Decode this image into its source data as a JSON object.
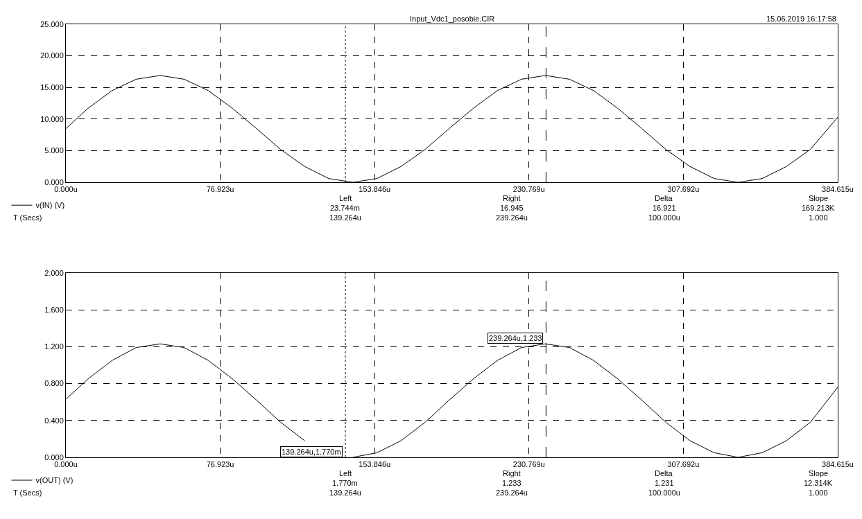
{
  "chart_data": [
    {
      "type": "line",
      "title": "Input_Vdc1_posobie.CIR",
      "subtitle": "15.06.2019 16:17:58",
      "x": [
        0,
        11,
        23,
        35,
        47,
        59,
        71,
        83,
        95,
        107,
        119,
        131,
        143,
        155,
        167,
        179,
        191,
        203,
        215,
        227,
        239,
        251,
        263,
        275,
        287,
        299,
        311,
        323,
        335,
        347,
        359,
        371,
        384.615
      ],
      "series": [
        {
          "name": "v(IN) (V)",
          "color": "#000000",
          "values": [
            8.5,
            11.7,
            14.5,
            16.3,
            16.9,
            16.3,
            14.5,
            11.7,
            8.5,
            5.2,
            2.5,
            0.6,
            0.0,
            0.6,
            2.5,
            5.2,
            8.5,
            11.7,
            14.5,
            16.3,
            16.9,
            16.3,
            14.5,
            11.7,
            8.5,
            5.2,
            2.5,
            0.6,
            0.0,
            0.6,
            2.5,
            5.2,
            10.3
          ]
        }
      ],
      "xlim": [
        0,
        384.615
      ],
      "xticks": [
        {
          "value": 0,
          "label": "0.000u"
        },
        {
          "value": 76.923,
          "label": "76.923u"
        },
        {
          "value": 153.846,
          "label": "153.846u"
        },
        {
          "value": 230.769,
          "label": "230.769u"
        },
        {
          "value": 307.692,
          "label": "307.692u"
        },
        {
          "value": 384.615,
          "label": "384.615u"
        }
      ],
      "ylim": [
        0,
        25
      ],
      "yticks": [
        {
          "value": 0,
          "label": "0.000"
        },
        {
          "value": 5,
          "label": "5.000"
        },
        {
          "value": 10,
          "label": "10.000"
        },
        {
          "value": 15,
          "label": "15.000"
        },
        {
          "value": 20,
          "label": "20.000"
        },
        {
          "value": 25,
          "label": "25.000"
        }
      ],
      "grid": true,
      "legend": "bottom left",
      "marker": "none",
      "line_style": "solid",
      "ref_lines": [
        {
          "axis": "x",
          "value": 139.264,
          "color": "#000000",
          "line_style": "dotted"
        },
        {
          "axis": "x",
          "value": 239.264,
          "color": "#000000",
          "line_style": "dashed"
        }
      ],
      "annotations": [
        "Left",
        "Right",
        "Delta",
        "Slope",
        "23.744m",
        "16.945",
        "16.921",
        "169.213K",
        "T (Secs)",
        "139.264u",
        "239.264u",
        "100.000u",
        "1.000"
      ]
    },
    {
      "type": "line",
      "x": [
        0,
        11,
        23,
        35,
        47,
        59,
        71,
        83,
        95,
        107,
        119,
        131,
        143,
        155,
        167,
        179,
        191,
        203,
        215,
        227,
        239,
        251,
        263,
        275,
        287,
        299,
        311,
        323,
        335,
        347,
        359,
        371,
        384.615
      ],
      "series": [
        {
          "name": "v(OUT) (V)",
          "color": "#000000",
          "values": [
            0.63,
            0.85,
            1.05,
            1.19,
            1.23,
            1.19,
            1.05,
            0.85,
            0.62,
            0.38,
            0.18,
            null,
            0.0,
            0.05,
            0.18,
            0.38,
            0.62,
            0.85,
            1.05,
            1.19,
            1.23,
            1.19,
            1.05,
            0.85,
            0.62,
            0.38,
            0.18,
            0.05,
            0.0,
            0.05,
            0.18,
            0.38,
            0.76
          ]
        }
      ],
      "xlim": [
        0,
        384.615
      ],
      "xticks": [
        {
          "value": 0,
          "label": "0.000u"
        },
        {
          "value": 76.923,
          "label": "76.923u"
        },
        {
          "value": 153.846,
          "label": "153.846u"
        },
        {
          "value": 230.769,
          "label": "230.769u"
        },
        {
          "value": 307.692,
          "label": "307.692u"
        },
        {
          "value": 384.615,
          "label": "384.615u"
        }
      ],
      "ylim": [
        0,
        2
      ],
      "yticks": [
        {
          "value": 0,
          "label": "0.000"
        },
        {
          "value": 0.4,
          "label": "0.400"
        },
        {
          "value": 0.8,
          "label": "0.800"
        },
        {
          "value": 1.2,
          "label": "1.200"
        },
        {
          "value": 1.6,
          "label": "1.600"
        },
        {
          "value": 2,
          "label": "2.000"
        }
      ],
      "grid": true,
      "legend": "bottom left",
      "marker": "none",
      "line_style": "solid",
      "ref_lines": [
        {
          "axis": "x",
          "value": 139.264,
          "color": "#000000",
          "line_style": "dotted"
        },
        {
          "axis": "x",
          "value": 239.264,
          "color": "#000000",
          "line_style": "dashed"
        }
      ],
      "annotations": [
        "Left",
        "Right",
        "Delta",
        "Slope",
        "1.770m",
        "1.233",
        "1.231",
        "12.314K",
        "T (Secs)",
        "139.264u",
        "239.264u",
        "100.000u",
        "1.000",
        {
          "text": "239.264u,1.233",
          "x": 239.264,
          "y": 1.233
        },
        {
          "text": "139.264u,1.770m",
          "x": 139.264,
          "y": 0.00177
        }
      ]
    }
  ]
}
